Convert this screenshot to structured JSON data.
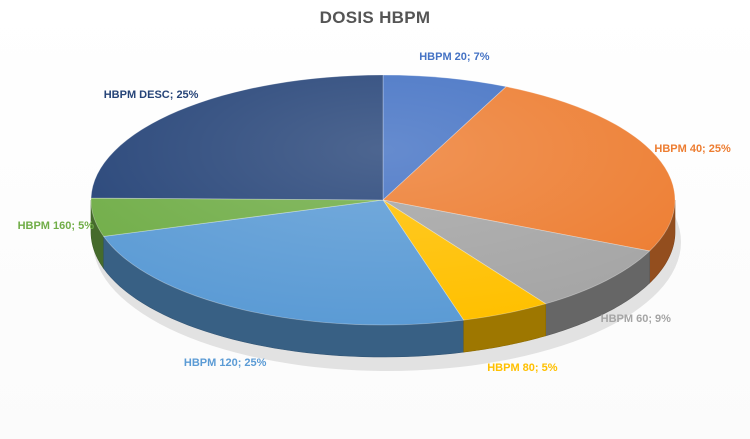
{
  "chart_data": {
    "type": "pie",
    "title": "DOSIS HBPM",
    "categories": [
      "HBPM 20",
      "HBPM 40",
      "HBPM 60",
      "HBPM 80",
      "HBPM 120",
      "HBPM 160",
      "HBPM DESC"
    ],
    "values": [
      7,
      25,
      9,
      5,
      25,
      5,
      25
    ],
    "colors": [
      "#4472C4",
      "#ED7D31",
      "#A5A5A5",
      "#FFC000",
      "#5B9BD5",
      "#70AD47",
      "#264478"
    ],
    "labels": [
      "HBPM 20; 7%",
      "HBPM 40; 25%",
      "HBPM 60; 9%",
      "HBPM 80; 5%",
      "HBPM 120; 25%",
      "HBPM 160; 5%",
      "HBPM DESC; 25%"
    ],
    "label_colors": [
      "#4472C4",
      "#ED7D31",
      "#A5A5A5",
      "#FFC000",
      "#5B9BD5",
      "#70AD47",
      "#264478"
    ],
    "style": "3d",
    "legend": "none"
  }
}
